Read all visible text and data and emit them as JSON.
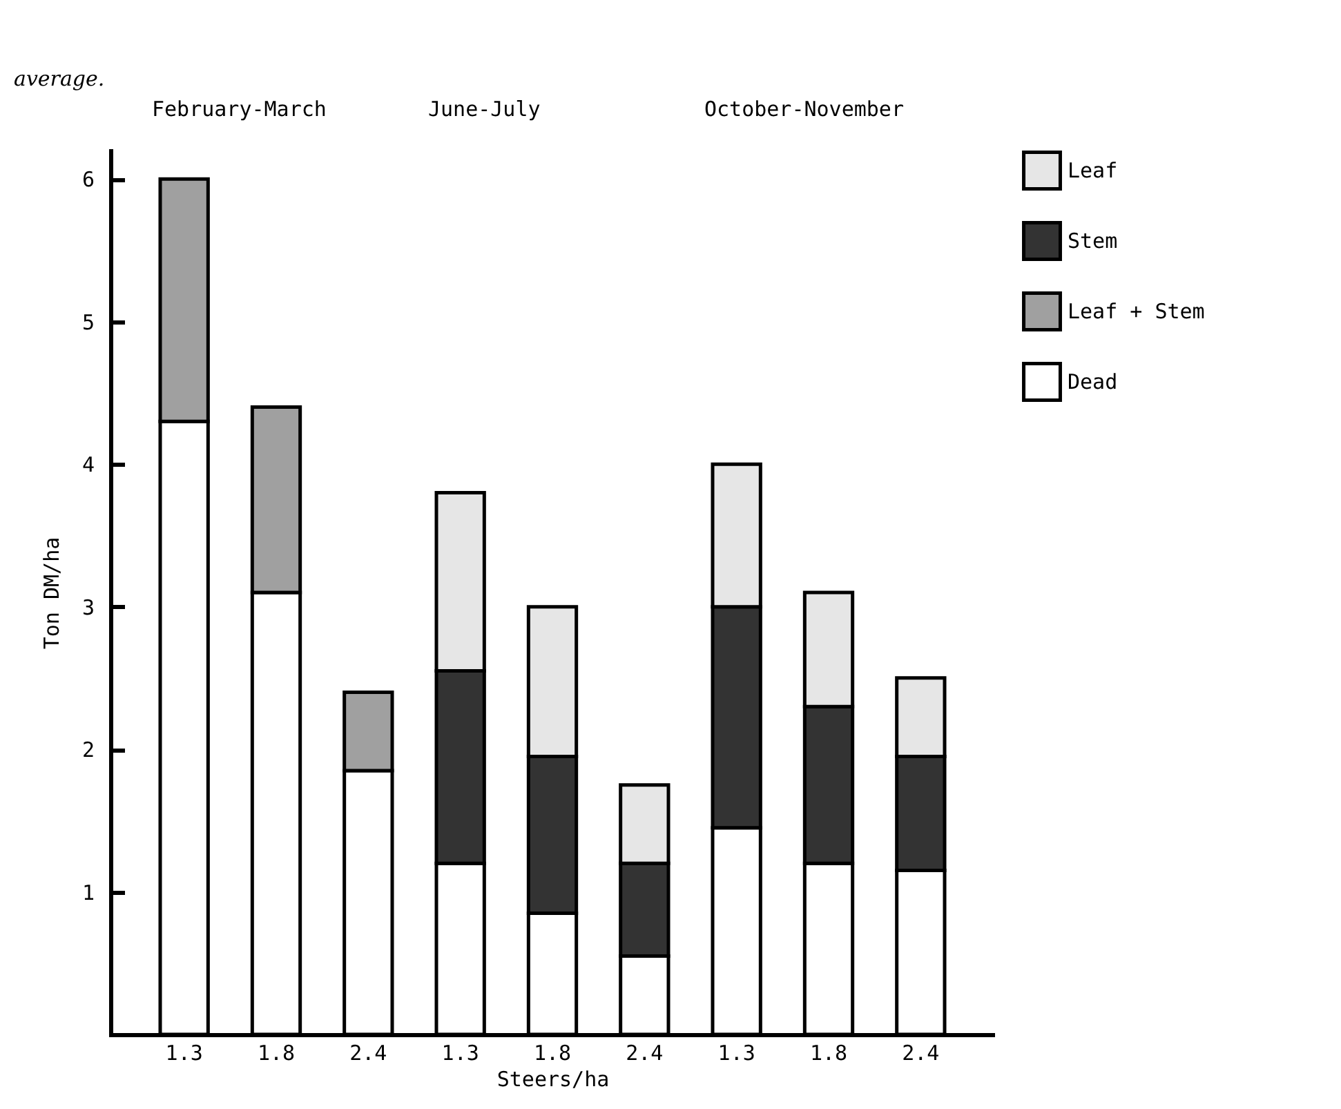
{
  "chart_data": {
    "type": "bar",
    "stacked": true,
    "annotations": [
      "average.",
      "February-March",
      "June-July",
      "October-November"
    ],
    "xlabel": "Steers/ha",
    "ylabel": "Ton DM/ha",
    "categories": [
      "1.3",
      "1.8",
      "2.4",
      "1.3",
      "1.8",
      "2.4",
      "1.3",
      "1.8",
      "2.4"
    ],
    "series": [
      {
        "name": "Dead",
        "color": "#ffffff",
        "values": [
          4.3,
          3.1,
          1.85,
          1.2,
          0.85,
          0.55,
          1.45,
          1.2,
          1.15
        ]
      },
      {
        "name": "Leaf + Stem",
        "color": "#a0a0a0",
        "values": [
          1.7,
          1.3,
          0.55,
          null,
          null,
          null,
          null,
          null,
          null
        ]
      },
      {
        "name": "Stem",
        "color": "#333333",
        "values": [
          null,
          null,
          null,
          1.35,
          1.1,
          0.65,
          1.55,
          1.1,
          0.8
        ]
      },
      {
        "name": "Leaf",
        "color": "#e6e6e6",
        "values": [
          null,
          null,
          null,
          1.25,
          1.05,
          0.55,
          1.0,
          0.8,
          0.55
        ]
      }
    ],
    "ylim": [
      0,
      6.2
    ],
    "yticks": [
      1,
      2,
      3,
      4,
      5,
      6
    ],
    "legend": "right"
  }
}
